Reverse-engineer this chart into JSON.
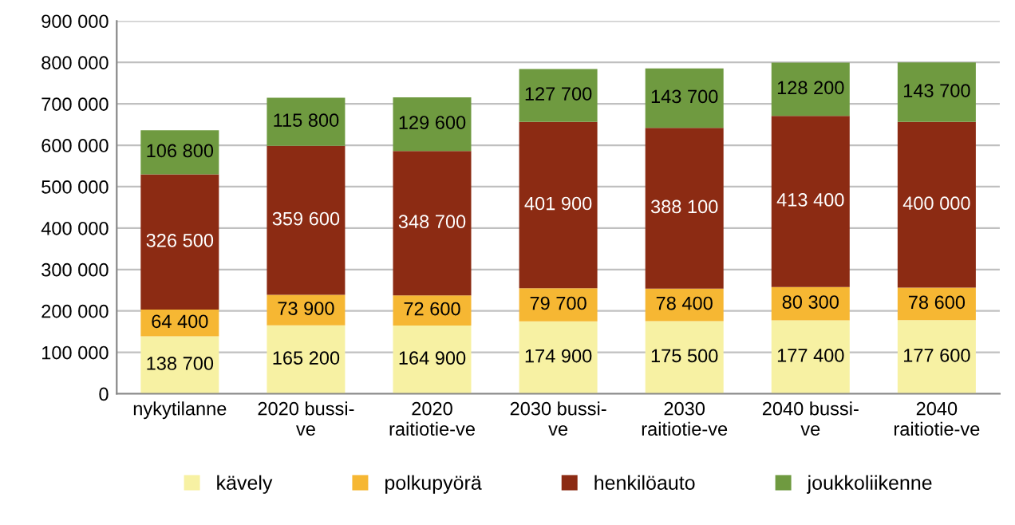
{
  "chart_data": {
    "type": "bar",
    "stacked": true,
    "categories": [
      "nykytilanne",
      "2020 bussi-\nve",
      "2020\nraitiotie-ve",
      "2030 bussi-\nve",
      "2030\nraitiotie-ve",
      "2040 bussi-\nve",
      "2040\nraitiotie-ve"
    ],
    "series": [
      {
        "name": "kävely",
        "color": "#f7f1a3",
        "values": [
          138700,
          165200,
          164900,
          174900,
          175500,
          177400,
          177600
        ],
        "value_labels": [
          "138 700",
          "165 200",
          "164 900",
          "174 900",
          "175 500",
          "177 400",
          "177 600"
        ]
      },
      {
        "name": "polkupyörä",
        "color": "#f6b733",
        "values": [
          64400,
          73900,
          72600,
          79700,
          78400,
          80300,
          78600
        ],
        "value_labels": [
          "64 400",
          "73 900",
          "72 600",
          "79 700",
          "78 400",
          "80 300",
          "78 600"
        ]
      },
      {
        "name": "henkilöauto",
        "color": "#8c2b13",
        "values": [
          326500,
          359600,
          348700,
          401900,
          388100,
          413400,
          400000
        ],
        "value_labels": [
          "326 500",
          "359 600",
          "348 700",
          "401 900",
          "388 100",
          "413 400",
          "400 000"
        ]
      },
      {
        "name": "joukkoliikenne",
        "color": "#6f9a40",
        "values": [
          106800,
          115800,
          129600,
          127700,
          143700,
          128200,
          143700
        ],
        "value_labels": [
          "106 800",
          "115 800",
          "129 600",
          "127 700",
          "143 700",
          "128 200",
          "143 700"
        ]
      }
    ],
    "ylim": [
      0,
      900000
    ],
    "yticks": [
      0,
      {
        "value": 100000,
        "label": "100 000"
      },
      {
        "value": 200000,
        "label": "200 000"
      },
      {
        "value": 300000,
        "label": "300 000"
      },
      {
        "value": 400000,
        "label": "400 000"
      },
      {
        "value": 500000,
        "label": "500 000"
      },
      {
        "value": 600000,
        "label": "600 000"
      },
      {
        "value": 700000,
        "label": "700 000"
      },
      {
        "value": 800000,
        "label": "800 000"
      },
      {
        "value": 900000,
        "label": "900 000"
      }
    ],
    "grid": "y",
    "legend": "bottom"
  }
}
